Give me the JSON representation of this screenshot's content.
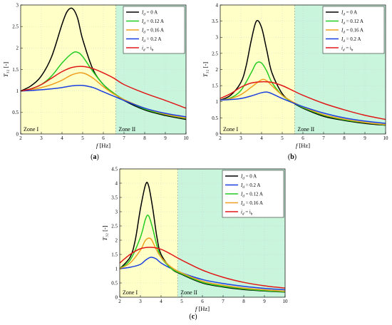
{
  "chart_data": [
    {
      "type": "line",
      "panel_label": "(a)",
      "xlabel": "f [Hz]",
      "ylabel": "T₃₂ [-]",
      "xlim": [
        2,
        10
      ],
      "ylim": [
        0,
        3
      ],
      "xticks": [
        "2",
        "3",
        "4",
        "5",
        "6",
        "7",
        "8",
        "9",
        "10"
      ],
      "yticks": [
        "0",
        "0.5",
        "1",
        "1.5",
        "2",
        "2.5",
        "3"
      ],
      "zones": [
        {
          "label": "Zone I",
          "x_range": [
            2,
            6.6
          ],
          "color": "#ffffc8"
        },
        {
          "label": "Zone II",
          "x_range": [
            6.6,
            10
          ],
          "color": "#c8f5dc"
        }
      ],
      "legend_position": "top-right",
      "series": [
        {
          "name": "I_d = 0 A",
          "color": "#000000",
          "x": [
            2,
            2.5,
            3,
            3.5,
            4,
            4.25,
            4.5,
            4.75,
            5,
            5.5,
            6,
            6.5,
            7,
            8,
            9,
            10
          ],
          "y": [
            1.0,
            1.12,
            1.35,
            1.8,
            2.55,
            2.85,
            2.92,
            2.7,
            2.2,
            1.5,
            1.15,
            0.95,
            0.78,
            0.56,
            0.43,
            0.34
          ]
        },
        {
          "name": "I_d = 0.12 A",
          "color": "#22cc22",
          "x": [
            2,
            2.5,
            3,
            3.5,
            4,
            4.5,
            4.75,
            5,
            5.5,
            6,
            6.5,
            7,
            8,
            9,
            10
          ],
          "y": [
            1.0,
            1.05,
            1.15,
            1.35,
            1.65,
            1.88,
            1.9,
            1.8,
            1.45,
            1.15,
            0.95,
            0.8,
            0.58,
            0.45,
            0.36
          ]
        },
        {
          "name": "I_d = 0.16 A",
          "color": "#f0a020",
          "x": [
            2,
            2.5,
            3,
            3.5,
            4,
            4.5,
            5,
            5.5,
            6,
            6.5,
            7,
            8,
            9,
            10
          ],
          "y": [
            1.0,
            1.03,
            1.08,
            1.15,
            1.25,
            1.38,
            1.42,
            1.3,
            1.1,
            0.93,
            0.8,
            0.6,
            0.46,
            0.37
          ]
        },
        {
          "name": "I_d = 0.2 A",
          "color": "#1a3fe0",
          "x": [
            2,
            2.5,
            3,
            3.5,
            4,
            4.5,
            5,
            5.5,
            6,
            6.5,
            7,
            8,
            9,
            10
          ],
          "y": [
            1.0,
            1.01,
            1.03,
            1.05,
            1.08,
            1.12,
            1.13,
            1.08,
            0.98,
            0.88,
            0.78,
            0.6,
            0.48,
            0.4
          ]
        },
        {
          "name": "i_d = i_h",
          "color": "#e01818",
          "x": [
            2,
            2.5,
            3,
            3.5,
            4,
            4.5,
            5,
            5.5,
            6,
            6.5,
            7,
            8,
            9,
            10
          ],
          "y": [
            1.0,
            1.05,
            1.15,
            1.3,
            1.45,
            1.55,
            1.57,
            1.52,
            1.42,
            1.3,
            1.15,
            0.95,
            0.78,
            0.6
          ]
        }
      ],
      "legend_items": [
        {
          "var": "I",
          "sub": "d",
          "rhs": " = 0 A",
          "color": "#000000"
        },
        {
          "var": "I",
          "sub": "d",
          "rhs": " = 0.12 A",
          "color": "#22cc22"
        },
        {
          "var": "I",
          "sub": "d",
          "rhs": " = 0.16 A",
          "color": "#f0a020"
        },
        {
          "var": "I",
          "sub": "d",
          "rhs": " = 0.2 A",
          "color": "#1a3fe0"
        },
        {
          "var": "i",
          "sub": "d",
          "rhs": " = i",
          "rhs_sub": "h",
          "color": "#e01818"
        }
      ]
    },
    {
      "type": "line",
      "panel_label": "(b)",
      "xlabel": "f [Hz]",
      "ylabel": "T₃₂ [-]",
      "xlim": [
        2,
        10
      ],
      "ylim": [
        0,
        4
      ],
      "xticks": [
        "2",
        "3",
        "4",
        "5",
        "6",
        "7",
        "8",
        "9",
        "10"
      ],
      "yticks": [
        "0",
        "0.5",
        "1",
        "1.5",
        "2",
        "2.5",
        "3",
        "3.5",
        "4"
      ],
      "zones": [
        {
          "label": "Zone I",
          "x_range": [
            2,
            5.6
          ],
          "color": "#ffffc8"
        },
        {
          "label": "Zone II",
          "x_range": [
            5.6,
            10
          ],
          "color": "#c8f5dc"
        }
      ],
      "legend_position": "top-right",
      "series": [
        {
          "name": "I_d = 0 A",
          "color": "#000000",
          "x": [
            2,
            2.5,
            3,
            3.25,
            3.5,
            3.75,
            4,
            4.25,
            4.5,
            5,
            5.5,
            6,
            7,
            8,
            9,
            10
          ],
          "y": [
            1.05,
            1.2,
            1.6,
            2.1,
            2.9,
            3.5,
            3.3,
            2.6,
            1.9,
            1.25,
            0.98,
            0.8,
            0.55,
            0.42,
            0.33,
            0.27
          ]
        },
        {
          "name": "I_d = 0.12 A",
          "color": "#22cc22",
          "x": [
            2,
            2.5,
            3,
            3.5,
            3.75,
            4,
            4.25,
            4.5,
            5,
            5.5,
            6,
            7,
            8,
            9,
            10
          ],
          "y": [
            1.05,
            1.12,
            1.35,
            1.9,
            2.2,
            2.2,
            1.95,
            1.6,
            1.2,
            0.98,
            0.82,
            0.58,
            0.44,
            0.35,
            0.28
          ]
        },
        {
          "name": "I_d = 0.16 A",
          "color": "#f0a020",
          "x": [
            2,
            2.5,
            3,
            3.5,
            4,
            4.25,
            4.5,
            5,
            5.5,
            6,
            7,
            8,
            9,
            10
          ],
          "y": [
            1.05,
            1.1,
            1.22,
            1.45,
            1.68,
            1.65,
            1.5,
            1.2,
            1.0,
            0.84,
            0.6,
            0.46,
            0.36,
            0.29
          ]
        },
        {
          "name": "I_d = 0.2 A",
          "color": "#1a3fe0",
          "x": [
            2,
            2.5,
            3,
            3.5,
            4,
            4.25,
            4.5,
            5,
            5.5,
            6,
            7,
            8,
            9,
            10
          ],
          "y": [
            1.05,
            1.07,
            1.1,
            1.18,
            1.28,
            1.3,
            1.25,
            1.1,
            0.97,
            0.85,
            0.65,
            0.5,
            0.4,
            0.33
          ]
        },
        {
          "name": "i_d = i_h",
          "color": "#e01818",
          "x": [
            2,
            2.5,
            3,
            3.5,
            4,
            4.5,
            5,
            5.5,
            6,
            7,
            8,
            9,
            10
          ],
          "y": [
            1.1,
            1.25,
            1.45,
            1.58,
            1.62,
            1.6,
            1.5,
            1.35,
            1.2,
            0.95,
            0.75,
            0.58,
            0.45
          ]
        }
      ],
      "legend_items": [
        {
          "var": "I",
          "sub": "d",
          "rhs": " = 0 A",
          "color": "#000000"
        },
        {
          "var": "I",
          "sub": "d",
          "rhs": " = 0.12 A",
          "color": "#22cc22"
        },
        {
          "var": "I",
          "sub": "d",
          "rhs": " = 0.16 A",
          "color": "#f0a020"
        },
        {
          "var": "I",
          "sub": "d",
          "rhs": " = 0.2 A",
          "color": "#1a3fe0"
        },
        {
          "var": "i",
          "sub": "d",
          "rhs": " = i",
          "rhs_sub": "h",
          "color": "#e01818"
        }
      ]
    },
    {
      "type": "line",
      "panel_label": "(c)",
      "xlabel": "f [Hz]",
      "ylabel": "T₃₂ [-]",
      "xlim": [
        2,
        10
      ],
      "ylim": [
        0,
        4.5
      ],
      "xticks": [
        "2",
        "3",
        "4",
        "5",
        "6",
        "7",
        "8",
        "9",
        "10"
      ],
      "yticks": [
        "0",
        "0.5",
        "1",
        "1.5",
        "2",
        "2.5",
        "3",
        "3.5",
        "4",
        "4.5"
      ],
      "zones": [
        {
          "label": "Zone I",
          "x_range": [
            2,
            4.8
          ],
          "color": "#ffffc8"
        },
        {
          "label": "Zone II",
          "x_range": [
            4.8,
            10
          ],
          "color": "#c8f5dc"
        }
      ],
      "legend_position": "top-right",
      "series": [
        {
          "name": "I_d = 0 A",
          "color": "#000000",
          "x": [
            2,
            2.5,
            2.75,
            3,
            3.25,
            3.4,
            3.6,
            3.8,
            4,
            4.5,
            5,
            6,
            7,
            8,
            9,
            10
          ],
          "y": [
            1.0,
            1.4,
            2.0,
            3.1,
            3.95,
            3.9,
            3.1,
            2.1,
            1.5,
            1.0,
            0.8,
            0.5,
            0.36,
            0.27,
            0.22,
            0.18
          ]
        },
        {
          "name": "I_d = 0.2 A",
          "color": "#1a3fe0",
          "x": [
            2,
            2.5,
            3,
            3.25,
            3.5,
            3.75,
            4,
            4.5,
            5,
            6,
            7,
            8,
            9,
            10
          ],
          "y": [
            1.0,
            1.05,
            1.15,
            1.3,
            1.4,
            1.35,
            1.2,
            1.0,
            0.85,
            0.62,
            0.48,
            0.38,
            0.31,
            0.26
          ]
        },
        {
          "name": "I_d = 0.12 A",
          "color": "#22cc22",
          "x": [
            2,
            2.5,
            3,
            3.25,
            3.4,
            3.6,
            3.8,
            4,
            4.5,
            5,
            6,
            7,
            8,
            9,
            10
          ],
          "y": [
            1.0,
            1.3,
            2.1,
            2.75,
            2.85,
            2.4,
            1.8,
            1.4,
            1.0,
            0.82,
            0.52,
            0.38,
            0.29,
            0.23,
            0.19
          ]
        },
        {
          "name": "I_d = 0.16 A",
          "color": "#f0a020",
          "x": [
            2,
            2.5,
            3,
            3.25,
            3.5,
            3.75,
            4,
            4.5,
            5,
            6,
            7,
            8,
            9,
            10
          ],
          "y": [
            1.0,
            1.2,
            1.65,
            2.0,
            2.05,
            1.7,
            1.4,
            1.05,
            0.85,
            0.56,
            0.42,
            0.32,
            0.26,
            0.21
          ]
        },
        {
          "name": "i_d = i_h",
          "color": "#e01818",
          "x": [
            2,
            2.5,
            3,
            3.5,
            4,
            4.5,
            5,
            6,
            7,
            8,
            9,
            10
          ],
          "y": [
            1.2,
            1.5,
            1.7,
            1.75,
            1.68,
            1.5,
            1.3,
            0.95,
            0.7,
            0.52,
            0.4,
            0.32
          ]
        }
      ],
      "legend_items": [
        {
          "var": "I",
          "sub": "d",
          "rhs": " = 0 A",
          "color": "#000000"
        },
        {
          "var": "I",
          "sub": "d",
          "rhs": " = 0.2 A",
          "color": "#1a3fe0"
        },
        {
          "var": "I",
          "sub": "d",
          "rhs": " = 0.12 A",
          "color": "#22cc22"
        },
        {
          "var": "I",
          "sub": "d",
          "rhs": " = 0.16 A",
          "color": "#f0a020"
        },
        {
          "var": "i",
          "sub": "d",
          "rhs": " = i",
          "rhs_sub": "h",
          "color": "#e01818"
        }
      ]
    }
  ]
}
